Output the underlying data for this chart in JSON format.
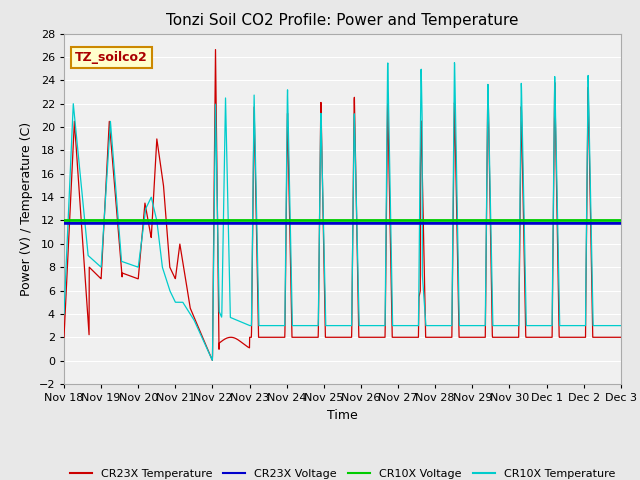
{
  "title": "Tonzi Soil CO2 Profile: Power and Temperature",
  "xlabel": "Time",
  "ylabel": "Power (V) / Temperature (C)",
  "ylim": [
    -2,
    28
  ],
  "yticks": [
    -2,
    0,
    2,
    4,
    6,
    8,
    10,
    12,
    14,
    16,
    18,
    20,
    22,
    24,
    26,
    28
  ],
  "cr23x_voltage": 11.75,
  "cr10x_voltage": 12.0,
  "legend_labels": [
    "CR23X Temperature",
    "CR23X Voltage",
    "CR10X Voltage",
    "CR10X Temperature"
  ],
  "legend_colors": [
    "#cc0000",
    "#0000cc",
    "#00cc00",
    "#00cccc"
  ],
  "label_box_text": "TZ_soilco2",
  "label_box_facecolor": "#ffffcc",
  "label_box_edgecolor": "#cc8800",
  "bg_color": "#e8e8e8",
  "plot_bg_color": "#f0f0f0",
  "grid_color": "#ffffff",
  "title_fontsize": 11,
  "axis_fontsize": 9,
  "tick_fontsize": 8,
  "xtick_labels": [
    "Nov 18",
    "Nov 19",
    "Nov 20",
    "Nov 21",
    "Nov 22",
    "Nov 23",
    "Nov 24",
    "Nov 25",
    "Nov 26",
    "Nov 27",
    "Nov 28",
    "Nov 29",
    "Nov 30",
    "Dec 1",
    "Dec 2",
    "Dec 3"
  ]
}
